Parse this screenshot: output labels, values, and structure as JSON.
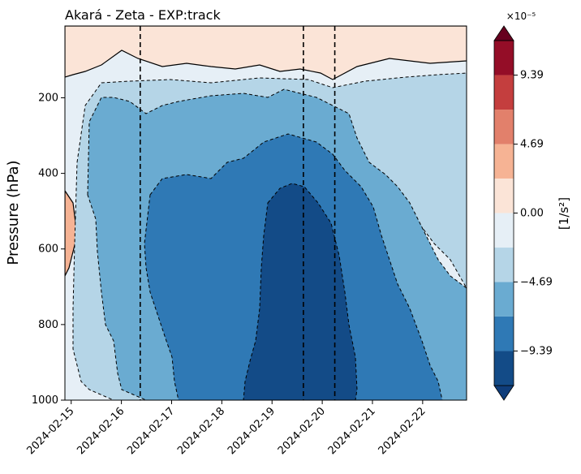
{
  "chart_data": {
    "type": "contourf",
    "title": "Akará - Zeta - EXP:track",
    "xlabel": "",
    "ylabel": "Pressure (hPa)",
    "x_ticks": [
      "2024-02-15",
      "2024-02-16",
      "2024-02-17",
      "2024-02-18",
      "2024-02-19",
      "2024-02-20",
      "2024-02-21",
      "2024-02-22"
    ],
    "y_ticks": [
      200,
      400,
      600,
      800,
      1000
    ],
    "y_range": [
      1000,
      10
    ],
    "y_inverted": true,
    "x_range": [
      "2024-02-14 21:00",
      "2024-02-22 21:00"
    ],
    "vertical_lines_dates": [
      "2024-02-16 09:00",
      "2024-02-19 15:00",
      "2024-02-20 06:00"
    ],
    "colorbar": {
      "label": "[1/s²]",
      "multiplier": "×10⁻⁵",
      "tick_labels": [
        "9.39",
        "4.69",
        "0.00",
        "−4.69",
        "−9.39"
      ],
      "tick_values": [
        9.39,
        4.69,
        0.0,
        -4.69,
        -9.39
      ],
      "levels": [
        -11.74,
        -9.39,
        -7.04,
        -4.69,
        -2.35,
        0.0,
        2.35,
        4.69,
        7.04,
        9.39,
        11.74
      ],
      "colors": [
        "#0f3d7a",
        "#134b87",
        "#2f79b5",
        "#6aabd1",
        "#b5d5e7",
        "#e6eff6",
        "#fbe4d7",
        "#f6b394",
        "#e2806b",
        "#c43e3e",
        "#940d27",
        "#67001f"
      ],
      "extend": "both"
    },
    "vorticity_core_minimum": "< -9.39 ×10⁻⁵ near 2024-02-19, 450–980 hPa"
  }
}
